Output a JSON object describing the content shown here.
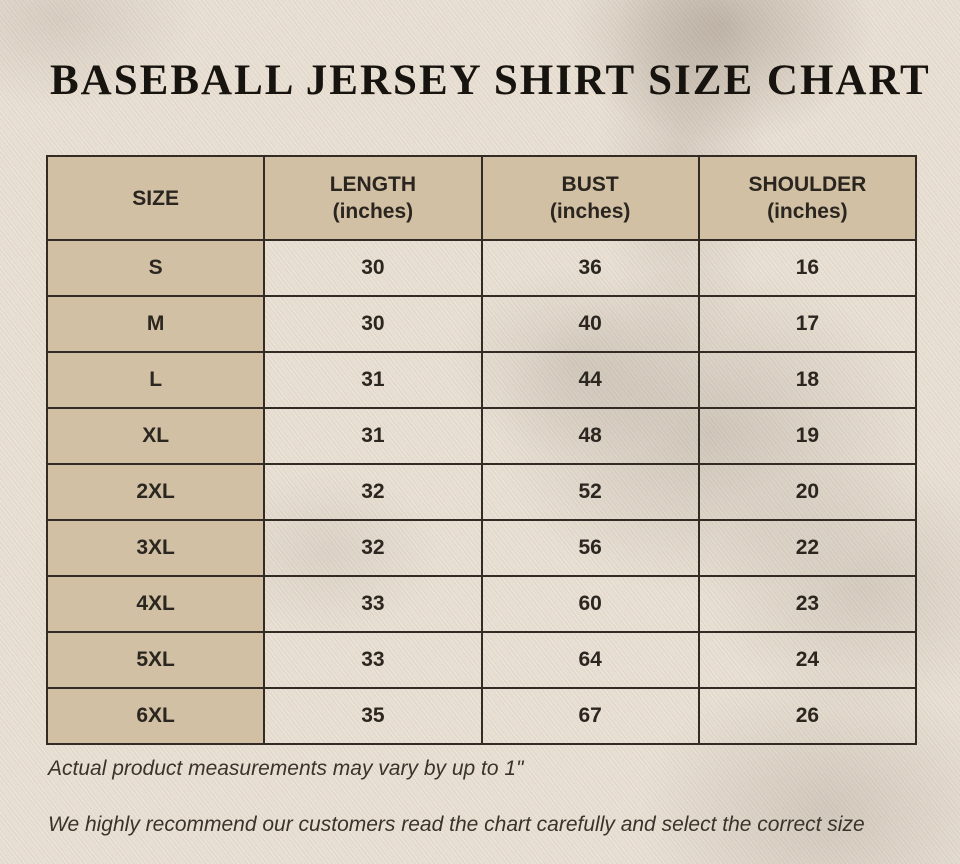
{
  "page": {
    "title": "BASEBALL JERSEY SHIRT SIZE CHART",
    "notes": {
      "variance": "Actual product measurements may vary by up to 1\"",
      "recommendation": "We highly recommend our customers read the chart carefully and select the correct size"
    }
  },
  "table": {
    "headers": [
      {
        "label": "SIZE",
        "unit": ""
      },
      {
        "label": "LENGTH",
        "unit": "(inches)"
      },
      {
        "label": "BUST",
        "unit": "(inches)"
      },
      {
        "label": "SHOULDER",
        "unit": "(inches)"
      }
    ],
    "rows": [
      {
        "size": "S",
        "length": "30",
        "bust": "36",
        "shoulder": "16"
      },
      {
        "size": "M",
        "length": "30",
        "bust": "40",
        "shoulder": "17"
      },
      {
        "size": "L",
        "length": "31",
        "bust": "44",
        "shoulder": "18"
      },
      {
        "size": "XL",
        "length": "31",
        "bust": "48",
        "shoulder": "19"
      },
      {
        "size": "2XL",
        "length": "32",
        "bust": "52",
        "shoulder": "20"
      },
      {
        "size": "3XL",
        "length": "32",
        "bust": "56",
        "shoulder": "22"
      },
      {
        "size": "4XL",
        "length": "33",
        "bust": "60",
        "shoulder": "23"
      },
      {
        "size": "5XL",
        "length": "33",
        "bust": "64",
        "shoulder": "24"
      },
      {
        "size": "6XL",
        "length": "35",
        "bust": "67",
        "shoulder": "26"
      }
    ]
  },
  "chart_data": {
    "type": "table",
    "title": "BASEBALL JERSEY SHIRT SIZE CHART",
    "columns": [
      "SIZE",
      "LENGTH (inches)",
      "BUST (inches)",
      "SHOULDER (inches)"
    ],
    "rows": [
      [
        "S",
        30,
        36,
        16
      ],
      [
        "M",
        30,
        40,
        17
      ],
      [
        "L",
        31,
        44,
        18
      ],
      [
        "XL",
        31,
        48,
        19
      ],
      [
        "2XL",
        32,
        52,
        20
      ],
      [
        "3XL",
        32,
        56,
        22
      ],
      [
        "4XL",
        33,
        60,
        23
      ],
      [
        "5XL",
        33,
        64,
        24
      ],
      [
        "6XL",
        35,
        67,
        26
      ]
    ],
    "notes": [
      "Actual product measurements may vary by up to 1\"",
      "We highly recommend our customers read the chart carefully and select the correct size"
    ]
  },
  "colors": {
    "background": "#e8dfd2",
    "cell_fill": "#d2c0a5",
    "border": "#332c24",
    "title_text": "#17130f",
    "cell_text": "#2b2620",
    "note_text": "#39332b"
  }
}
